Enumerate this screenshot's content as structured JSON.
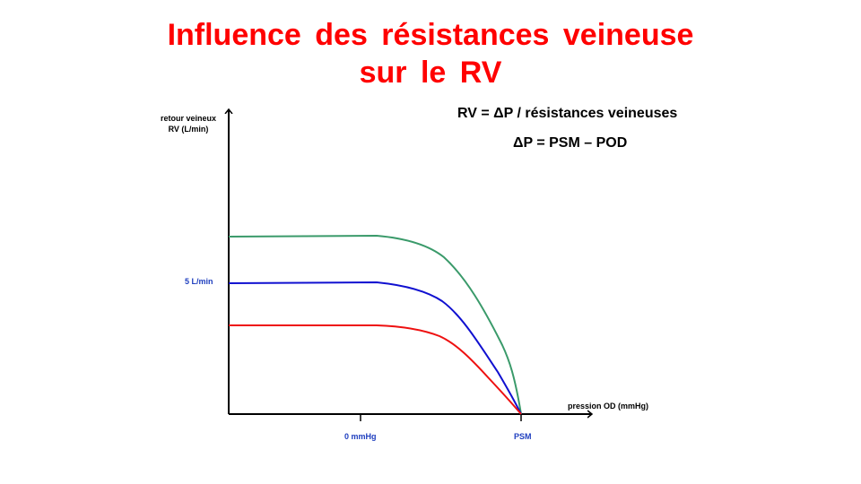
{
  "title": {
    "line1": "Influence des résistances veineuse",
    "line2": "sur le RV"
  },
  "equations": {
    "eq1": "RV = ΔP / résistances veineuses",
    "eq2": "ΔP = PSM – POD"
  },
  "axes": {
    "y_label_line1": "retour veineux",
    "y_label_line2": "RV (L/min)",
    "x_label": "pression  OD (mmHg)",
    "y_tick": "5 L/min",
    "x_tick_zero": "0 mmHg",
    "x_tick_psm": "PSM"
  },
  "colors": {
    "title": "#ff0000",
    "tick_labels": "#1f3fbf",
    "curve_green": "#3a9a6a",
    "curve_blue": "#1010d0",
    "curve_red": "#ee1010"
  },
  "curves": [
    {
      "color_key": "curve_green"
    },
    {
      "color_key": "curve_blue"
    },
    {
      "color_key": "curve_red"
    }
  ]
}
